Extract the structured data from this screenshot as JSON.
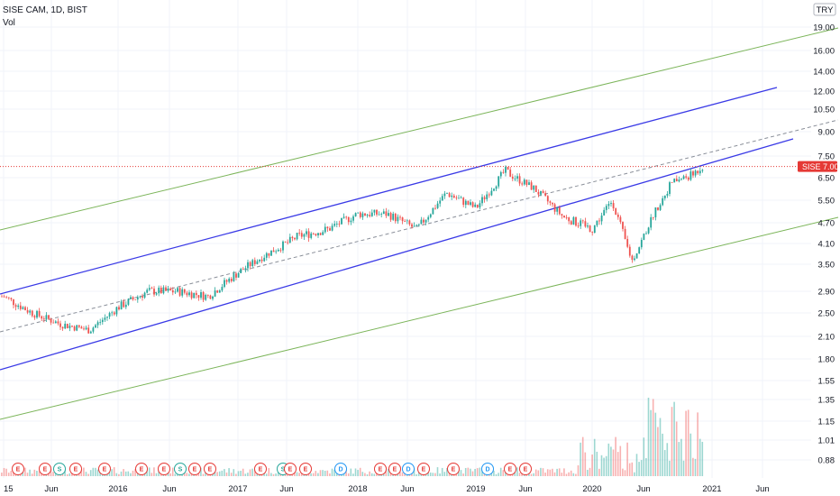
{
  "header": {
    "symbol_line": "SISE CAM, 1D, BIST",
    "volume_label": "Vol"
  },
  "price_axis": {
    "currency": "TRY",
    "last_price_symbol": "SISE",
    "last_price": "7.00"
  },
  "chart_data": {
    "type": "candlestick",
    "title": "SISE CAM, 1D, BIST",
    "y_scale": "log",
    "y_ticks": [
      "19.00",
      "16.00",
      "14.00",
      "12.00",
      "10.50",
      "9.00",
      "7.50",
      "6.50",
      "5.50",
      "4.70",
      "4.10",
      "3.50",
      "2.90",
      "2.50",
      "2.10",
      "1.80",
      "1.55",
      "1.35",
      "1.15",
      "1.01",
      "0.88"
    ],
    "x_ticks": [
      "15",
      "Jun",
      "2016",
      "Jun",
      "2017",
      "Jun",
      "2018",
      "Jun",
      "2019",
      "Jun",
      "2020",
      "Jun",
      "2021",
      "Jun"
    ],
    "approx_close_series": {
      "x": [
        "2015-01",
        "2015-04",
        "2015-07",
        "2015-10",
        "2016-01",
        "2016-04",
        "2016-07",
        "2016-10",
        "2017-01",
        "2017-04",
        "2017-07",
        "2017-10",
        "2018-01",
        "2018-04",
        "2018-07",
        "2018-10",
        "2019-01",
        "2019-04",
        "2019-07",
        "2019-10",
        "2020-01",
        "2020-03",
        "2020-05",
        "2020-07",
        "2020-09",
        "2020-11",
        "2020-12"
      ],
      "close": [
        2.8,
        2.5,
        2.3,
        2.2,
        2.6,
        2.9,
        2.9,
        2.8,
        3.3,
        3.8,
        4.3,
        4.5,
        5.0,
        5.0,
        4.5,
        5.8,
        5.2,
        6.8,
        6.0,
        4.9,
        4.5,
        5.5,
        3.6,
        4.9,
        6.3,
        6.6,
        7.0
      ]
    },
    "trend_channel": {
      "upper_line": "blue",
      "lower_line": "blue",
      "mid_line": "grey dashed",
      "outer_lines": "green"
    },
    "last_price_line": 7.0,
    "events": [
      "E",
      "E",
      "S",
      "E",
      "E",
      "E",
      "E",
      "S",
      "E",
      "E",
      "E",
      "S",
      "E",
      "E",
      "D",
      "E",
      "E",
      "D",
      "E",
      "E",
      "D",
      "E",
      "E"
    ],
    "volume": "shown as histogram at bottom",
    "colors": {
      "up": "#26a69a",
      "down": "#ef5350",
      "channel": "#3a3ae6",
      "outer": "#7cb55a",
      "mid": "#8a8f99",
      "last": "#e53935"
    }
  }
}
